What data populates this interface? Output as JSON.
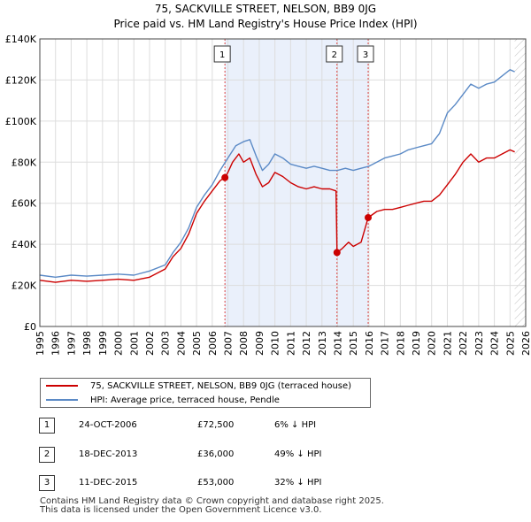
{
  "chart_data": {
    "type": "line",
    "title": "75, SACKVILLE STREET, NELSON, BB9 0JG",
    "subtitle": "Price paid vs. HM Land Registry's House Price Index (HPI)",
    "x_ticks": [
      "1995",
      "1996",
      "1997",
      "1998",
      "1999",
      "2000",
      "2001",
      "2002",
      "2003",
      "2004",
      "2005",
      "2006",
      "2007",
      "2008",
      "2009",
      "2010",
      "2011",
      "2012",
      "2013",
      "2014",
      "2015",
      "2016",
      "2017",
      "2018",
      "2019",
      "2020",
      "2021",
      "2022",
      "2023",
      "2024",
      "2025",
      "2026"
    ],
    "y_ticks": [
      "£0",
      "£20K",
      "£40K",
      "£60K",
      "£80K",
      "£100K",
      "£120K",
      "£140K"
    ],
    "xlim": [
      1995,
      2026
    ],
    "ylim": [
      0,
      140000
    ],
    "grid": true,
    "shaded_period": [
      2006.81,
      2015.95
    ],
    "hatched_after": 2025.3,
    "series": [
      {
        "name": "75, SACKVILLE STREET, NELSON, BB9 0JG (terraced house)",
        "color": "#cc0000",
        "points": [
          [
            1995.0,
            22500
          ],
          [
            1996.0,
            21500
          ],
          [
            1997.0,
            22500
          ],
          [
            1998.0,
            22000
          ],
          [
            1999.0,
            22500
          ],
          [
            2000.0,
            23000
          ],
          [
            2001.0,
            22500
          ],
          [
            2002.0,
            24000
          ],
          [
            2003.0,
            28000
          ],
          [
            2003.5,
            34000
          ],
          [
            2004.0,
            38000
          ],
          [
            2004.5,
            45000
          ],
          [
            2005.0,
            55000
          ],
          [
            2005.5,
            61000
          ],
          [
            2006.0,
            66000
          ],
          [
            2006.5,
            71000
          ],
          [
            2006.81,
            72500
          ],
          [
            2007.0,
            75000
          ],
          [
            2007.3,
            80000
          ],
          [
            2007.7,
            84000
          ],
          [
            2008.0,
            80000
          ],
          [
            2008.4,
            82000
          ],
          [
            2008.8,
            74000
          ],
          [
            2009.2,
            68000
          ],
          [
            2009.6,
            70000
          ],
          [
            2010.0,
            75000
          ],
          [
            2010.5,
            73000
          ],
          [
            2011.0,
            70000
          ],
          [
            2011.5,
            68000
          ],
          [
            2012.0,
            67000
          ],
          [
            2012.5,
            68000
          ],
          [
            2013.0,
            67000
          ],
          [
            2013.5,
            67000
          ],
          [
            2013.9,
            66000
          ],
          [
            2013.96,
            36000
          ],
          [
            2014.3,
            38000
          ],
          [
            2014.7,
            41000
          ],
          [
            2015.0,
            39000
          ],
          [
            2015.5,
            41000
          ],
          [
            2015.95,
            53000
          ],
          [
            2016.5,
            56000
          ],
          [
            2017.0,
            57000
          ],
          [
            2017.5,
            57000
          ],
          [
            2018.0,
            58000
          ],
          [
            2018.5,
            59000
          ],
          [
            2019.0,
            60000
          ],
          [
            2019.5,
            61000
          ],
          [
            2020.0,
            61000
          ],
          [
            2020.5,
            64000
          ],
          [
            2021.0,
            69000
          ],
          [
            2021.5,
            74000
          ],
          [
            2022.0,
            80000
          ],
          [
            2022.5,
            84000
          ],
          [
            2023.0,
            80000
          ],
          [
            2023.5,
            82000
          ],
          [
            2024.0,
            82000
          ],
          [
            2024.5,
            84000
          ],
          [
            2025.0,
            86000
          ],
          [
            2025.3,
            85000
          ]
        ]
      },
      {
        "name": "HPI: Average price, terraced house, Pendle",
        "color": "#5b8ac6",
        "points": [
          [
            1995.0,
            25000
          ],
          [
            1996.0,
            24000
          ],
          [
            1997.0,
            25000
          ],
          [
            1998.0,
            24500
          ],
          [
            1999.0,
            25000
          ],
          [
            2000.0,
            25500
          ],
          [
            2001.0,
            25000
          ],
          [
            2002.0,
            27000
          ],
          [
            2003.0,
            30000
          ],
          [
            2003.5,
            36000
          ],
          [
            2004.0,
            41000
          ],
          [
            2004.5,
            48000
          ],
          [
            2005.0,
            58000
          ],
          [
            2005.5,
            64000
          ],
          [
            2006.0,
            69000
          ],
          [
            2006.5,
            76000
          ],
          [
            2007.0,
            82000
          ],
          [
            2007.5,
            88000
          ],
          [
            2008.0,
            90000
          ],
          [
            2008.4,
            91000
          ],
          [
            2008.8,
            83000
          ],
          [
            2009.2,
            76000
          ],
          [
            2009.6,
            79000
          ],
          [
            2010.0,
            84000
          ],
          [
            2010.5,
            82000
          ],
          [
            2011.0,
            79000
          ],
          [
            2011.5,
            78000
          ],
          [
            2012.0,
            77000
          ],
          [
            2012.5,
            78000
          ],
          [
            2013.0,
            77000
          ],
          [
            2013.5,
            76000
          ],
          [
            2014.0,
            76000
          ],
          [
            2014.5,
            77000
          ],
          [
            2015.0,
            76000
          ],
          [
            2015.5,
            77000
          ],
          [
            2016.0,
            78000
          ],
          [
            2016.5,
            80000
          ],
          [
            2017.0,
            82000
          ],
          [
            2017.5,
            83000
          ],
          [
            2018.0,
            84000
          ],
          [
            2018.5,
            86000
          ],
          [
            2019.0,
            87000
          ],
          [
            2019.5,
            88000
          ],
          [
            2020.0,
            89000
          ],
          [
            2020.5,
            94000
          ],
          [
            2021.0,
            104000
          ],
          [
            2021.5,
            108000
          ],
          [
            2022.0,
            113000
          ],
          [
            2022.5,
            118000
          ],
          [
            2023.0,
            116000
          ],
          [
            2023.5,
            118000
          ],
          [
            2024.0,
            119000
          ],
          [
            2024.5,
            122000
          ],
          [
            2025.0,
            125000
          ],
          [
            2025.3,
            124000
          ]
        ]
      }
    ],
    "sales": [
      {
        "label": "1",
        "date": "24-OCT-2006",
        "x": 2006.81,
        "price": 72500,
        "price_label": "£72,500",
        "hpi_label": "6% ↓ HPI"
      },
      {
        "label": "2",
        "date": "18-DEC-2013",
        "x": 2013.96,
        "price": 36000,
        "price_label": "£36,000",
        "hpi_label": "49% ↓ HPI"
      },
      {
        "label": "3",
        "date": "11-DEC-2015",
        "x": 2015.95,
        "price": 53000,
        "price_label": "£53,000",
        "hpi_label": "32% ↓ HPI"
      }
    ]
  },
  "legend": {
    "property_label": "75, SACKVILLE STREET, NELSON, BB9 0JG (terraced house)",
    "hpi_label": "HPI: Average price, terraced house, Pendle"
  },
  "footer": {
    "line1": "Contains HM Land Registry data © Crown copyright and database right 2025.",
    "line2": "This data is licensed under the Open Government Licence v3.0."
  }
}
